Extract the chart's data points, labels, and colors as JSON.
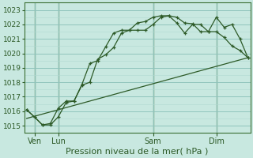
{
  "xlabel": "Pression niveau de la mer( hPa )",
  "bg_color": "#c8e8e0",
  "plot_bg_color": "#c8e8e0",
  "grid_major_color": "#90c4bc",
  "grid_minor_color": "#b0d8d0",
  "line_color": "#2d5a27",
  "vline_color": "#3a6e32",
  "ylim": [
    1014.5,
    1023.5
  ],
  "xlim": [
    -0.3,
    28.3
  ],
  "xtick_labels": [
    "Ven",
    "Lun",
    "Sam",
    "Dim"
  ],
  "xtick_positions": [
    1,
    4,
    16,
    24
  ],
  "line1_x": [
    0,
    1,
    2,
    3,
    4,
    5,
    6,
    7,
    8,
    9,
    10,
    11,
    12,
    13,
    14,
    15,
    16,
    17,
    18,
    19,
    20,
    21,
    22,
    23,
    24,
    25,
    26,
    27,
    28
  ],
  "line1_y": [
    1016.1,
    1015.6,
    1015.05,
    1015.05,
    1015.6,
    1016.6,
    1016.7,
    1017.8,
    1018.0,
    1019.6,
    1019.9,
    1020.4,
    1021.4,
    1021.6,
    1021.6,
    1021.6,
    1022.0,
    1022.5,
    1022.6,
    1022.5,
    1022.1,
    1022.05,
    1021.5,
    1021.5,
    1022.5,
    1021.8,
    1022.0,
    1021.0,
    1019.7
  ],
  "line2_x": [
    0,
    1,
    2,
    3,
    4,
    5,
    6,
    7,
    8,
    9,
    10,
    11,
    12,
    13,
    14,
    15,
    16,
    17,
    18,
    19,
    20,
    21,
    22,
    23,
    24,
    25,
    26,
    27,
    28
  ],
  "line2_y": [
    1016.1,
    1015.6,
    1015.05,
    1015.15,
    1016.2,
    1016.7,
    1016.7,
    1017.85,
    1019.3,
    1019.5,
    1020.45,
    1021.4,
    1021.6,
    1021.6,
    1022.1,
    1022.2,
    1022.5,
    1022.6,
    1022.6,
    1022.1,
    1021.4,
    1022.0,
    1022.0,
    1021.5,
    1021.5,
    1021.1,
    1020.5,
    1020.2,
    1019.7
  ],
  "line3_x": [
    0,
    28
  ],
  "line3_y": [
    1015.5,
    1019.7
  ],
  "xlabel_fontsize": 8,
  "ytick_fontsize": 6.5,
  "xtick_fontsize": 7
}
